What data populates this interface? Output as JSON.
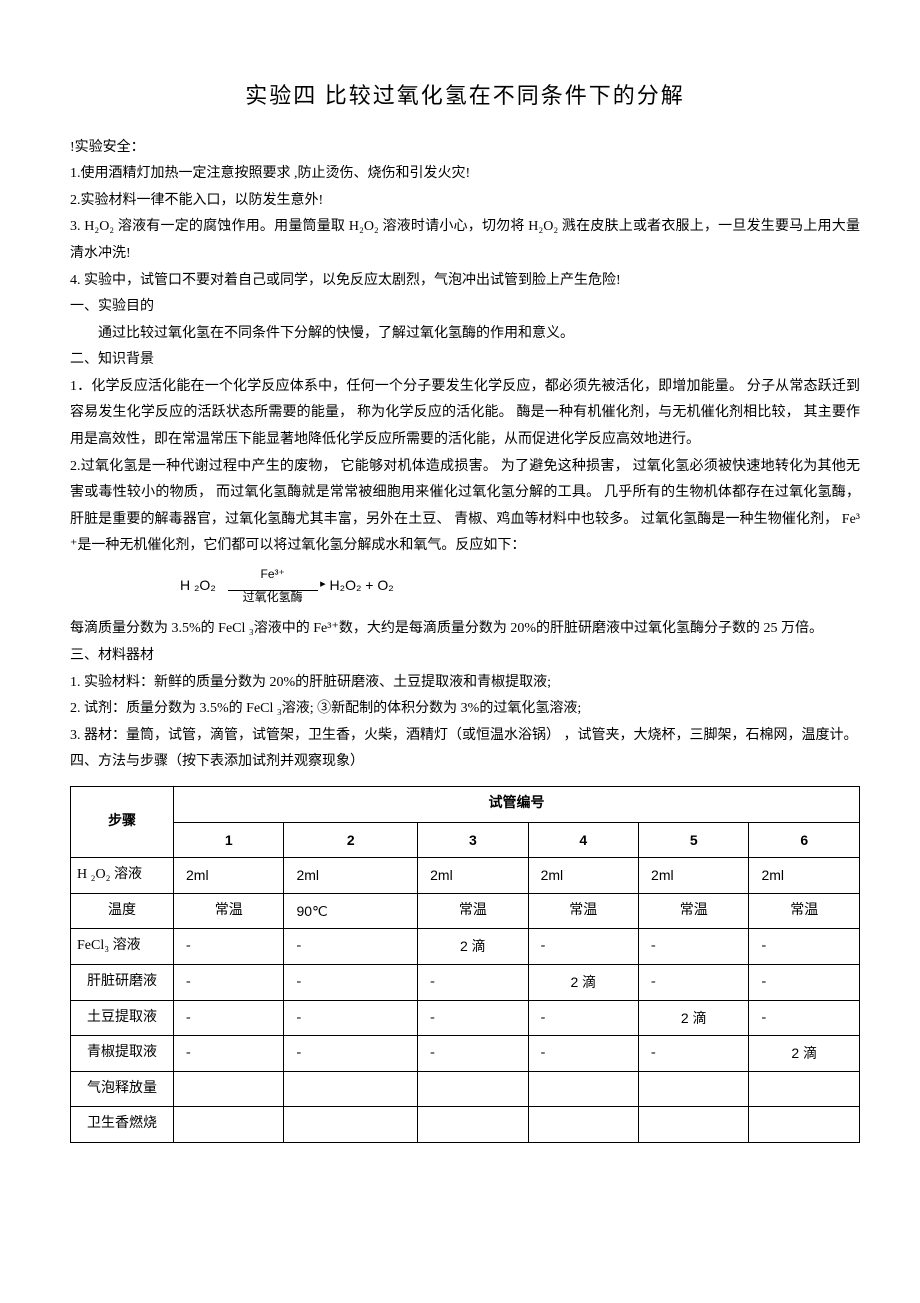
{
  "title": "实验四  比较过氧化氢在不同条件下的分解",
  "safety": {
    "heading": "!实验安全：",
    "items": [
      "1.使用酒精灯加热一定注意按照要求    ,防止烫伤、烧伤和引发火灾!",
      "2.实验材料一律不能入口，以防发生意外!",
      "3. H₂O₂ 溶液有一定的腐蚀作用。用量筒量取      H₂O₂ 溶液时请小心，切勿将     H₂O₂ 溅在皮肤上或者衣服上，一旦发生要马上用大量清水冲洗!",
      "4. 实验中，试管口不要对着自己或同学，以免反应太剧烈，气泡冲出试管到脸上产生危险!"
    ]
  },
  "section1": {
    "heading": "一、实验目的",
    "body": "通过比较过氧化氢在不同条件下分解的快慢，了解过氧化氢酶的作用和意义。"
  },
  "section2": {
    "heading": "二、知识背景",
    "p1": "1．化学反应活化能在一个化学反应体系中，任何一个分子要发生化学反应，都必须先被活化，即增加能量。  分子从常态跃迁到容易发生化学反应的活跃状态所需要的能量，      称为化学反应的活化能。  酶是一种有机催化剂，与无机催化剂相比较，     其主要作用是高效性，即在常温常压下能显著地降低化学反应所需要的活化能，从而促进化学反应高效地进行。",
    "p2": "2.过氧化氢是一种代谢过程中产生的废物，    它能够对机体造成损害。    为了避免这种损害，   过氧化氢必须被快速地转化为其他无害或毒性较小的物质，     而过氧化氢酶就是常常被细胞用来催化过氧化氢分解的工具。   几乎所有的生物机体都存在过氧化氢酶，     肝脏是重要的解毒器官，过氧化氢酶尤其丰富，另外在土豆、    青椒、鸡血等材料中也较多。    过氧化氢酶是一种生物催化剂，  Fe³⁺是一种无机催化剂，它们都可以将过氧化氢分解成水和氧气。反应如下：",
    "formula": {
      "left": "H ₂O₂",
      "top": "Fe³⁺",
      "bottom": "过氧化氢酶",
      "right": "H₂O₂   +   O₂"
    },
    "p3": "每滴质量分数为    3.5%的 FeCl ₃溶液中的   Fe³⁺数，大约是每滴质量分数为     20%的肝脏研磨液中过氧化氢酶分子数的    25 万倍。"
  },
  "section3": {
    "heading": "三、材料器材",
    "items": [
      "1. 实验材料：新鲜的质量分数为     20%的肝脏研磨液、土豆提取液和青椒提取液;",
      "2. 试剂：质量分数为   3.5%的 FeCl ₃溶液;  ③新配制的体积分数为     3%的过氧化氢溶液;",
      "3. 器材：量筒，试管，滴管，试管架，卫生香，火柴，酒精灯（或恒温水浴锅）        ，试管夹，大烧杯，三脚架，石棉网，温度计。"
    ]
  },
  "section4": {
    "heading": "四、方法与步骤（按下表添加试剂并观察现象）"
  },
  "table": {
    "header_step": "步骤",
    "header_span": "试管编号",
    "cols": [
      "1",
      "2",
      "3",
      "4",
      "5",
      "6"
    ],
    "rows": [
      {
        "label": "H ₂O₂ 溶液",
        "cells": [
          "2ml",
          "2ml",
          "2ml",
          "2ml",
          "2ml",
          "2ml"
        ]
      },
      {
        "label": "温度",
        "cells": [
          "常温",
          "90℃",
          "常温",
          "常温",
          "常温",
          "常温"
        ]
      },
      {
        "label": "FeCl₃ 溶液",
        "cells": [
          "-",
          "-",
          "2 滴",
          "-",
          "-",
          "-"
        ]
      },
      {
        "label": "肝脏研磨液",
        "cells": [
          "-",
          "-",
          "-",
          "2 滴",
          "-",
          "-"
        ]
      },
      {
        "label": "土豆提取液",
        "cells": [
          "-",
          "-",
          "-",
          "-",
          "2 滴",
          "-"
        ]
      },
      {
        "label": "青椒提取液",
        "cells": [
          "-",
          "-",
          "-",
          "-",
          "-",
          "2 滴"
        ]
      },
      {
        "label": "气泡释放量",
        "cells": [
          "",
          "",
          "",
          "",
          "",
          ""
        ]
      },
      {
        "label": "卫生香燃烧",
        "cells": [
          "",
          "",
          "",
          "",
          "",
          ""
        ]
      }
    ]
  }
}
